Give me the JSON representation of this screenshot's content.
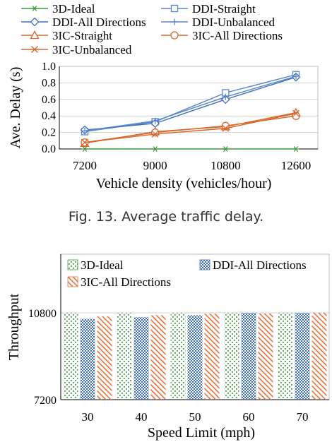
{
  "caption": "Fig. 13.  Average traffic delay.",
  "chart_data": [
    {
      "type": "line",
      "xlabel": "Vehicle density (vehicles/hour)",
      "ylabel": "Ave. Delay (s)",
      "categories": [
        "7200",
        "9000",
        "10800",
        "12600"
      ],
      "ylim": [
        0,
        1.0
      ],
      "yticks": [
        "0.0",
        "0.2",
        "0.4",
        "0.6",
        "0.8",
        "1.0"
      ],
      "legend_position": "top",
      "series": [
        {
          "name": "3D-Ideal",
          "color": "#3a9c3a",
          "marker": "asterisk",
          "values": [
            0.0,
            0.0,
            0.0,
            0.0
          ]
        },
        {
          "name": "DDI-Straight",
          "color": "#5b86c8",
          "marker": "square",
          "values": [
            0.21,
            0.33,
            0.68,
            0.9
          ]
        },
        {
          "name": "DDI-All Directions",
          "color": "#3e6fbf",
          "marker": "diamond",
          "values": [
            0.23,
            0.31,
            0.6,
            0.87
          ]
        },
        {
          "name": "DDI-Unbalanced",
          "color": "#5b86c8",
          "marker": "plus",
          "values": [
            0.22,
            0.34,
            0.63,
            0.88
          ]
        },
        {
          "name": "3IC-Straight",
          "color": "#d9662b",
          "marker": "triangle",
          "values": [
            0.07,
            0.21,
            0.27,
            0.44
          ]
        },
        {
          "name": "3IC-All Directions",
          "color": "#d9662b",
          "marker": "circle",
          "values": [
            0.08,
            0.2,
            0.28,
            0.4
          ]
        },
        {
          "name": "3IC-Unbalanced",
          "color": "#d9662b",
          "marker": "x",
          "values": [
            0.08,
            0.18,
            0.25,
            0.43
          ]
        }
      ]
    },
    {
      "type": "bar",
      "xlabel": "Speed Limit (mph)",
      "ylabel": "Throughput",
      "categories": [
        "30",
        "40",
        "50",
        "60",
        "70"
      ],
      "ylim": [
        7200,
        10800
      ],
      "yticks": [
        "7200",
        "10800"
      ],
      "legend_position": "top",
      "series": [
        {
          "name": "3D-Ideal",
          "color": "#3a9c3a",
          "pattern": "dots",
          "values": [
            10800,
            10800,
            10800,
            10800,
            10800
          ]
        },
        {
          "name": "DDI-All Directions",
          "color": "#3e6fbf",
          "pattern": "checker",
          "values": [
            10550,
            10620,
            10700,
            10800,
            10800
          ]
        },
        {
          "name": "3IC-All Directions",
          "color": "#e8703a",
          "pattern": "hatch",
          "values": [
            10650,
            10700,
            10760,
            10770,
            10800
          ]
        }
      ]
    }
  ]
}
